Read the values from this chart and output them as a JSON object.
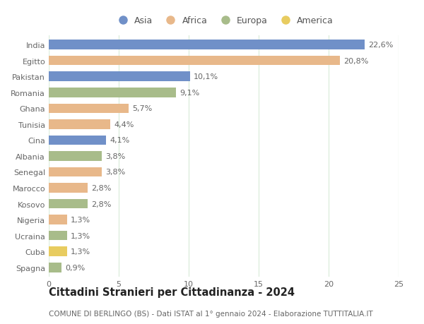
{
  "countries": [
    "India",
    "Egitto",
    "Pakistan",
    "Romania",
    "Ghana",
    "Tunisia",
    "Cina",
    "Albania",
    "Senegal",
    "Marocco",
    "Kosovo",
    "Nigeria",
    "Ucraina",
    "Cuba",
    "Spagna"
  ],
  "values": [
    22.6,
    20.8,
    10.1,
    9.1,
    5.7,
    4.4,
    4.1,
    3.8,
    3.8,
    2.8,
    2.8,
    1.3,
    1.3,
    1.3,
    0.9
  ],
  "labels": [
    "22,6%",
    "20,8%",
    "10,1%",
    "9,1%",
    "5,7%",
    "4,4%",
    "4,1%",
    "3,8%",
    "3,8%",
    "2,8%",
    "2,8%",
    "1,3%",
    "1,3%",
    "1,3%",
    "0,9%"
  ],
  "continents": [
    "Asia",
    "Africa",
    "Asia",
    "Europa",
    "Africa",
    "Africa",
    "Asia",
    "Europa",
    "Africa",
    "Africa",
    "Europa",
    "Africa",
    "Europa",
    "America",
    "Europa"
  ],
  "colors": {
    "Asia": "#7090c8",
    "Africa": "#e8b88a",
    "Europa": "#a8bc8a",
    "America": "#e8cc60"
  },
  "legend_order": [
    "Asia",
    "Africa",
    "Europa",
    "America"
  ],
  "title": "Cittadini Stranieri per Cittadinanza - 2024",
  "subtitle": "COMUNE DI BERLINGO (BS) - Dati ISTAT al 1° gennaio 2024 - Elaborazione TUTTITALIA.IT",
  "xlim": [
    0,
    25
  ],
  "xticks": [
    0,
    5,
    10,
    15,
    20,
    25
  ],
  "background_color": "#ffffff",
  "grid_color": "#ddeedd",
  "bar_height": 0.6,
  "label_fontsize": 8,
  "tick_fontsize": 8,
  "title_fontsize": 10.5,
  "subtitle_fontsize": 7.5
}
